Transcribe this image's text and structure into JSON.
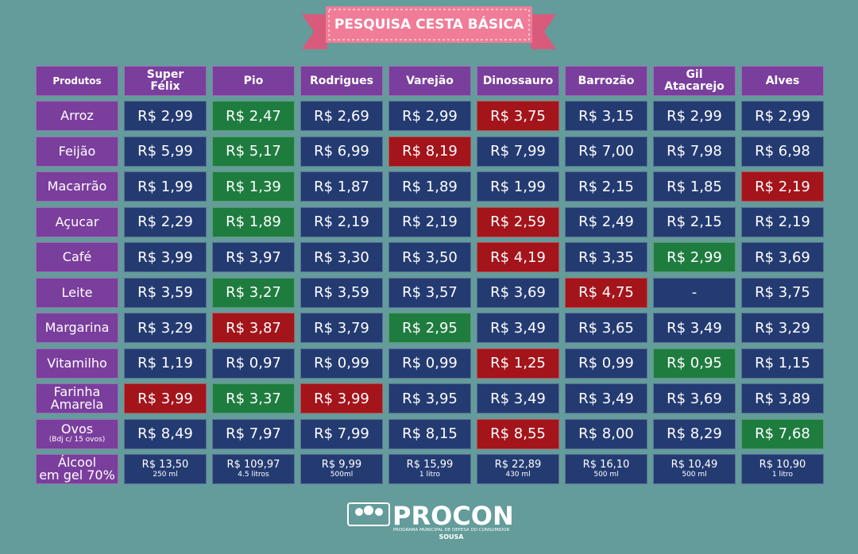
{
  "title": "PESQUISA CESTA BÁSICA",
  "table": {
    "corner": "Produtos",
    "stores": [
      "Super\nFélix",
      "Pio",
      "Rodrigues",
      "Varejão",
      "Dinossauro",
      "Barrozão",
      "Gil\nAtacarejo",
      "Alves"
    ],
    "rows": [
      {
        "product": "Arroz",
        "prices": [
          "R$ 2,99",
          "R$ 2,47",
          "R$ 2,69",
          "R$ 2,99",
          "R$ 3,75",
          "R$ 3,15",
          "R$ 2,99",
          "R$ 2,99"
        ],
        "lowest": [
          1
        ],
        "highest": [
          4
        ]
      },
      {
        "product": "Feijão",
        "prices": [
          "R$ 5,99",
          "R$ 5,17",
          "R$ 6,99",
          "R$ 8,19",
          "R$ 7,99",
          "R$ 7,00",
          "R$ 7,98",
          "R$ 6,98"
        ],
        "lowest": [
          1
        ],
        "highest": [
          3
        ]
      },
      {
        "product": "Macarrão",
        "prices": [
          "R$ 1,99",
          "R$ 1,39",
          "R$ 1,87",
          "R$ 1,89",
          "R$ 1,99",
          "R$ 2,15",
          "R$ 1,85",
          "R$ 2,19"
        ],
        "lowest": [
          1
        ],
        "highest": [
          7
        ]
      },
      {
        "product": "Açucar",
        "prices": [
          "R$ 2,29",
          "R$ 1,89",
          "R$ 2,19",
          "R$ 2,19",
          "R$ 2,59",
          "R$ 2,49",
          "R$ 2,15",
          "R$ 2,19"
        ],
        "lowest": [
          1
        ],
        "highest": [
          4
        ]
      },
      {
        "product": "Café",
        "prices": [
          "R$ 3,99",
          "R$ 3,97",
          "R$ 3,30",
          "R$ 3,50",
          "R$ 4,19",
          "R$ 3,35",
          "R$ 2,99",
          "R$ 3,69"
        ],
        "lowest": [
          6
        ],
        "highest": [
          4
        ]
      },
      {
        "product": "Leite",
        "prices": [
          "R$ 3,59",
          "R$ 3,27",
          "R$ 3,59",
          "R$ 3,57",
          "R$ 3,69",
          "R$ 4,75",
          "-",
          "R$ 3,75"
        ],
        "lowest": [
          1
        ],
        "highest": [
          5
        ]
      },
      {
        "product": "Margarina",
        "prices": [
          "R$ 3,29",
          "R$ 3,87",
          "R$ 3,79",
          "R$ 2,95",
          "R$ 3,49",
          "R$ 3,65",
          "R$ 3,49",
          "R$ 3,29"
        ],
        "lowest": [
          3
        ],
        "highest": [
          1
        ]
      },
      {
        "product": "Vitamilho",
        "prices": [
          "R$ 1,19",
          "R$ 0,97",
          "R$ 0,99",
          "R$ 0,99",
          "R$ 1,25",
          "R$ 0,99",
          "R$ 0,95",
          "R$ 1,15"
        ],
        "lowest": [
          6
        ],
        "highest": [
          4
        ]
      },
      {
        "product": "Farinha\nAmarela",
        "prices": [
          "R$ 3,99",
          "R$ 3,37",
          "R$ 3,99",
          "R$ 3,95",
          "R$ 3,49",
          "R$ 3,49",
          "R$ 3,69",
          "R$ 3,89"
        ],
        "lowest": [
          1
        ],
        "highest": [
          0,
          2
        ]
      },
      {
        "product": "Ovos",
        "note": "(Bdj c/ 15 ovos)",
        "prices": [
          "R$ 8,49",
          "R$ 7,97",
          "R$ 7,99",
          "R$ 8,15",
          "R$ 8,55",
          "R$ 8,00",
          "R$ 8,29",
          "R$ 7,68"
        ],
        "lowest": [
          7
        ],
        "highest": [
          4
        ]
      },
      {
        "product": "Álcool\nem gel 70%",
        "prices": [
          "R$ 13,50",
          "R$ 109,97",
          "R$ 9,99",
          "R$ 15,99",
          "R$ 22,89",
          "R$ 16,10",
          "R$ 10,49",
          "R$ 10,90"
        ],
        "sizes": [
          "250 ml",
          "4.5 litros",
          "500ml",
          "1 litro",
          "430 ml",
          "500 ml",
          "500 ml",
          "1 litro"
        ],
        "lowest": [],
        "highest": []
      }
    ]
  },
  "footer": {
    "logo": "PROCON",
    "subtitle": "PROGRAMA MUNICIPAL DE DEFESA DO CONSUMIDOR",
    "city": "SOUSA"
  }
}
